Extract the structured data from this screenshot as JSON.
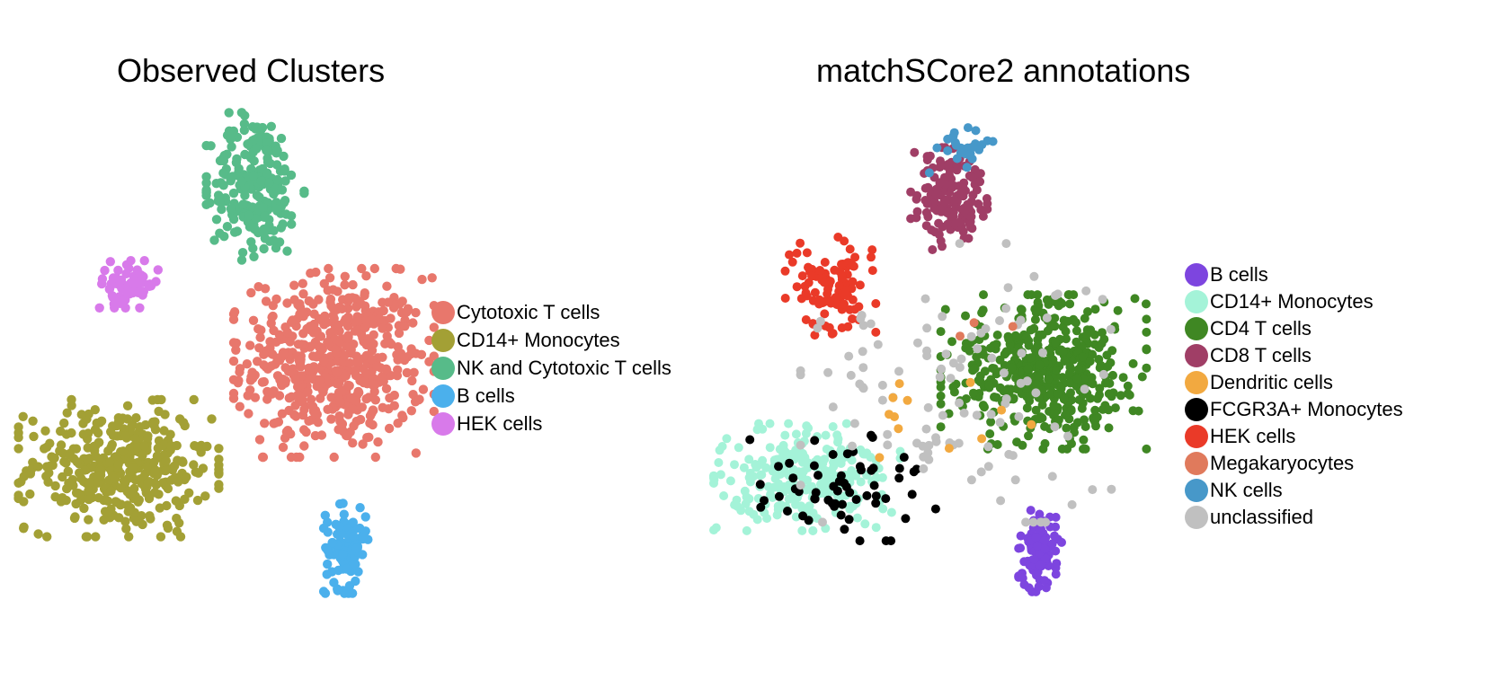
{
  "chart_data": [
    {
      "type": "scatter",
      "title": "Observed Clusters",
      "xlabel": "",
      "ylabel": "",
      "grid": false,
      "legend_position": "right",
      "legend": [
        {
          "label": "Cytotoxic T cells",
          "color": "#E8776C"
        },
        {
          "label": "CD14+ Monocytes",
          "color": "#A3A035"
        },
        {
          "label": "NK and Cytotoxic T cells",
          "color": "#57BB89"
        },
        {
          "label": "B cells",
          "color": "#4BB0EC"
        },
        {
          "label": "HEK cells",
          "color": "#D87AEA"
        }
      ],
      "clusters": [
        {
          "label": "Cytotoxic T cells",
          "n": 560,
          "center": [
            0.6,
            -0.8
          ],
          "spread": [
            4.3,
            4.4
          ]
        },
        {
          "label": "CD14+ Monocytes",
          "n": 380,
          "center": [
            -12.0,
            -7.5
          ],
          "spread": [
            4.3,
            3.2
          ]
        },
        {
          "label": "NK and Cytotoxic T cells",
          "n": 230,
          "center": [
            -4.0,
            10.5
          ],
          "spread": [
            2.1,
            3.6
          ]
        },
        {
          "label": "B cells",
          "n": 110,
          "center": [
            1.3,
            -12.6
          ],
          "spread": [
            0.95,
            2.1
          ]
        },
        {
          "label": "HEK cells",
          "n": 60,
          "center": [
            -11.5,
            4.2
          ],
          "spread": [
            1.5,
            1.1
          ]
        }
      ]
    },
    {
      "type": "scatter",
      "title": "matchSCore2 annotations",
      "xlabel": "",
      "ylabel": "",
      "grid": false,
      "legend_position": "right",
      "legend": [
        {
          "label": "B cells",
          "color": "#7D45DF"
        },
        {
          "label": "CD14+ Monocytes",
          "color": "#A4F3D8"
        },
        {
          "label": "CD4 T cells",
          "color": "#3F8723"
        },
        {
          "label": "CD8 T cells",
          "color": "#A03E66"
        },
        {
          "label": "Dendritic cells",
          "color": "#F2A940"
        },
        {
          "label": "FCGR3A+ Monocytes",
          "color": "#000000"
        },
        {
          "label": "HEK cells",
          "color": "#EA3A28"
        },
        {
          "label": "Megakaryocytes",
          "color": "#E07A5C"
        },
        {
          "label": "NK cells",
          "color": "#4798C9"
        },
        {
          "label": "unclassified",
          "color": "#C0C0C0"
        }
      ],
      "clusters": [
        {
          "label": "CD4 T cells",
          "n": 470,
          "center": [
            2.0,
            -0.8
          ],
          "spread": [
            4.3,
            3.6
          ]
        },
        {
          "label": "CD14+ Monocytes",
          "n": 260,
          "center": [
            -11.5,
            -7.5
          ],
          "spread": [
            3.9,
            2.5
          ]
        },
        {
          "label": "CD8 T cells",
          "n": 150,
          "center": [
            -3.4,
            10.2
          ],
          "spread": [
            1.6,
            2.4
          ]
        },
        {
          "label": "B cells",
          "n": 100,
          "center": [
            1.8,
            -12.2
          ],
          "spread": [
            0.9,
            1.9
          ]
        },
        {
          "label": "HEK cells",
          "n": 95,
          "center": [
            -10.3,
            4.5
          ],
          "spread": [
            2.0,
            2.4
          ]
        },
        {
          "label": "FCGR3A+ Monocytes",
          "n": 60,
          "center": [
            -9.5,
            -8.0
          ],
          "spread": [
            4.0,
            2.6
          ]
        },
        {
          "label": "unclassified",
          "n": 110,
          "center": [
            -3.0,
            -1.5
          ],
          "spread": [
            6.5,
            6.5
          ]
        },
        {
          "label": "NK cells",
          "n": 25,
          "center": [
            -2.8,
            13.5
          ],
          "spread": [
            1.4,
            1.2
          ]
        },
        {
          "label": "Dendritic cells",
          "n": 12,
          "center": [
            -5.5,
            -3.0
          ],
          "spread": [
            5.0,
            3.5
          ]
        },
        {
          "label": "Megakaryocytes",
          "n": 3,
          "center": [
            -2.0,
            2.5
          ],
          "spread": [
            3.0,
            3.0
          ]
        }
      ]
    }
  ]
}
